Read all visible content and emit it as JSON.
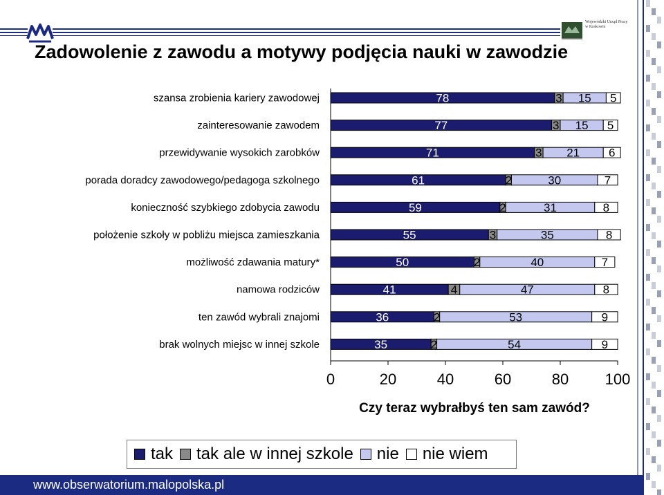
{
  "title": "Zadowolenie z zawodu a motywy podjęcia nauki w zawodzie",
  "logo_right_text": "Wojewódzki Urząd Pracy w Krakowie",
  "footer_url": "www.obserwatorium.malopolska.pl",
  "colors": {
    "tak": "#1c1c6e",
    "tak_ale_w_innej_szkole": "#8a8a8a",
    "nie": "#c4c8ee",
    "nie_wiem": "#ffffff",
    "footer_bg": "#1c2b82"
  },
  "chart_data": {
    "type": "bar",
    "orientation": "horizontal",
    "stacked": true,
    "xlabel": "Czy teraz wybrałbyś ten sam zawód?",
    "xlim": [
      0,
      100
    ],
    "xticks": [
      "0",
      "20",
      "40",
      "60",
      "80",
      "100"
    ],
    "legend_position": "bottom",
    "categories": [
      "szansa zrobienia kariery zawodowej",
      "zainteresowanie zawodem",
      "przewidywanie wysokich zarobków",
      "porada doradcy zawodowego/pedagoga szkolnego",
      "konieczność szybkiego zdobycia zawodu",
      "położenie szkoły w pobliżu miejsca zamieszkania",
      "możliwość zdawania matury*",
      "namowa rodziców",
      "ten zawód wybrali znajomi",
      "brak wolnych miejsc w innej szkole"
    ],
    "series": [
      {
        "name": "tak",
        "values": [
          78,
          77,
          71,
          61,
          59,
          55,
          50,
          41,
          36,
          35
        ]
      },
      {
        "name": "tak ale w innej szkole",
        "values": [
          3,
          3,
          3,
          2,
          2,
          3,
          2,
          4,
          2,
          2
        ]
      },
      {
        "name": "nie",
        "values": [
          15,
          15,
          21,
          30,
          31,
          35,
          40,
          47,
          53,
          54
        ]
      },
      {
        "name": "nie wiem",
        "values": [
          5,
          5,
          6,
          7,
          8,
          8,
          7,
          8,
          9,
          9
        ]
      }
    ]
  }
}
